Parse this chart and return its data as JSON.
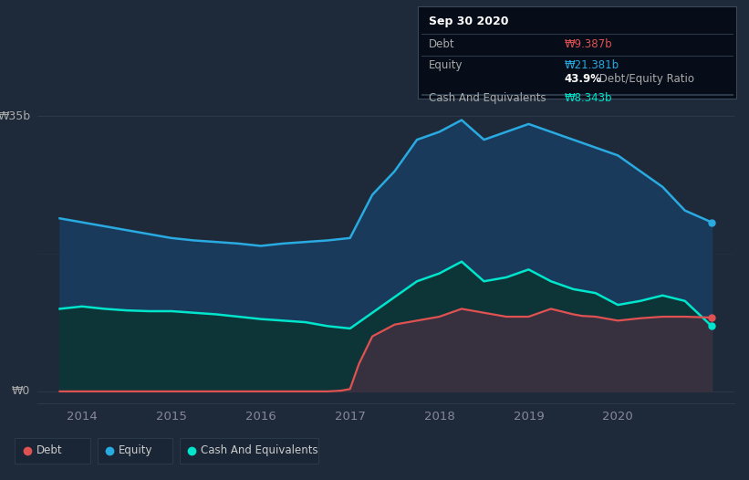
{
  "background_color": "#1e2a3a",
  "plot_bg_color": "#1e2a3a",
  "ylabel_35b": "₩35b",
  "ylabel_0": "₩0",
  "x_ticks": [
    2014,
    2015,
    2016,
    2017,
    2018,
    2019,
    2020
  ],
  "ylim": [
    -1.5,
    40
  ],
  "xlim_start": 2013.5,
  "xlim_end": 2021.3,
  "equity_color": "#29aae1",
  "equity_fill": "#1e3a5f",
  "debt_color": "#e05252",
  "debt_fill": "#4a3535",
  "cash_color": "#00e5cc",
  "cash_fill": "#0d3535",
  "legend_bg": "#1e2d3d",
  "tooltip": {
    "date": "Sep 30 2020",
    "debt_label": "Debt",
    "debt_value": "₩9.387b",
    "equity_label": "Equity",
    "equity_value": "₩21.381b",
    "ratio": "43.9%",
    "ratio_label": " Debt/Equity Ratio",
    "cash_label": "Cash And Equivalents",
    "cash_value": "₩8.343b"
  },
  "equity_x": [
    2013.75,
    2014.0,
    2014.25,
    2014.5,
    2014.75,
    2015.0,
    2015.25,
    2015.5,
    2015.75,
    2016.0,
    2016.25,
    2016.5,
    2016.75,
    2017.0,
    2017.25,
    2017.5,
    2017.75,
    2018.0,
    2018.25,
    2018.5,
    2018.75,
    2019.0,
    2019.25,
    2019.5,
    2019.75,
    2020.0,
    2020.25,
    2020.5,
    2020.75,
    2021.05
  ],
  "equity_y": [
    22,
    21.5,
    21.0,
    20.5,
    20.0,
    19.5,
    19.2,
    19.0,
    18.8,
    18.5,
    18.8,
    19.0,
    19.2,
    19.5,
    25,
    28,
    32,
    33,
    34.5,
    32,
    33,
    34,
    33,
    32,
    31,
    30,
    28,
    26,
    23,
    21.5
  ],
  "cash_x": [
    2013.75,
    2014.0,
    2014.25,
    2014.5,
    2014.75,
    2015.0,
    2015.25,
    2015.5,
    2015.75,
    2016.0,
    2016.25,
    2016.5,
    2016.75,
    2017.0,
    2017.25,
    2017.5,
    2017.75,
    2018.0,
    2018.25,
    2018.5,
    2018.75,
    2019.0,
    2019.25,
    2019.5,
    2019.75,
    2020.0,
    2020.25,
    2020.5,
    2020.75,
    2021.05
  ],
  "cash_y": [
    10.5,
    10.8,
    10.5,
    10.3,
    10.2,
    10.2,
    10.0,
    9.8,
    9.5,
    9.2,
    9.0,
    8.8,
    8.3,
    8.0,
    10,
    12,
    14,
    15,
    16.5,
    14,
    14.5,
    15.5,
    14,
    13,
    12.5,
    11,
    11.5,
    12.2,
    11.5,
    8.3
  ],
  "debt_x": [
    2013.75,
    2014.0,
    2014.5,
    2015.0,
    2015.5,
    2016.0,
    2016.5,
    2016.75,
    2016.9,
    2017.0,
    2017.1,
    2017.25,
    2017.5,
    2017.75,
    2018.0,
    2018.25,
    2018.5,
    2018.75,
    2019.0,
    2019.25,
    2019.5,
    2019.6,
    2019.75,
    2020.0,
    2020.25,
    2020.5,
    2020.75,
    2021.05
  ],
  "debt_y": [
    0,
    0,
    0,
    0,
    0,
    0,
    0,
    0,
    0.1,
    0.3,
    3.5,
    7.0,
    8.5,
    9.0,
    9.5,
    10.5,
    10.0,
    9.5,
    9.5,
    10.5,
    9.8,
    9.6,
    9.5,
    9.0,
    9.3,
    9.5,
    9.5,
    9.387
  ]
}
